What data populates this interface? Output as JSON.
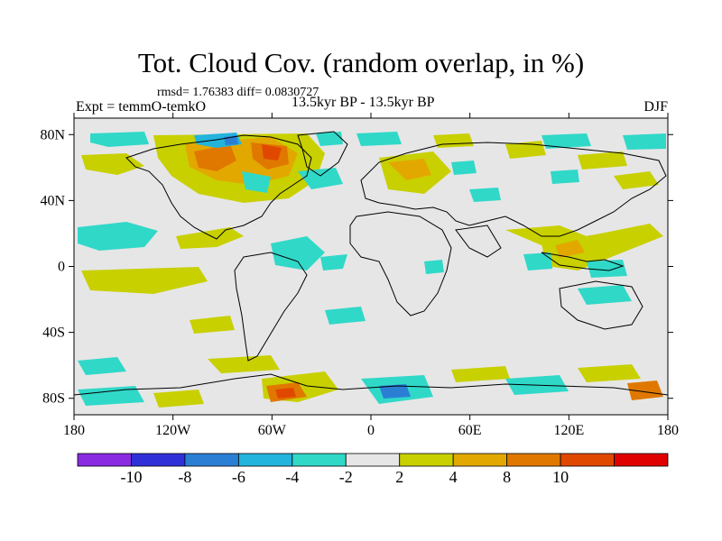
{
  "figure": {
    "title": "Tot. Cloud Cov. (random overlap, in %)",
    "stats": "rmsd= 1.76383 diff= 0.0830727",
    "experiment": "Expt = temmO-temkO",
    "period": "13.5kyr BP - 13.5kyr BP",
    "season": "DJF"
  },
  "map": {
    "projection": "cylindrical equidistant",
    "background_color": "#e6e6e6",
    "lat_ticks": [
      "80N",
      "40N",
      "0",
      "40S",
      "80S"
    ],
    "lon_ticks": [
      "180",
      "120W",
      "60W",
      "0",
      "60E",
      "120E",
      "180"
    ]
  },
  "colorbar": {
    "colors": [
      "#8a2be2",
      "#3030d8",
      "#2a7fd4",
      "#22b4dc",
      "#30d8c8",
      "#e6e6e6",
      "#c8d000",
      "#e2a800",
      "#e07800",
      "#e04800",
      "#e00000"
    ],
    "labels": [
      "-10",
      "-8",
      "-6",
      "-4",
      "-2",
      "2",
      "4",
      "8",
      "10"
    ]
  }
}
